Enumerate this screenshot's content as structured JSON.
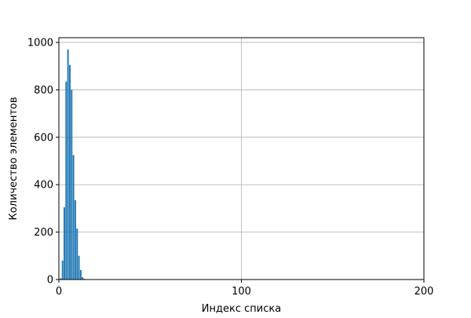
{
  "chart_data": {
    "type": "bar",
    "title": "",
    "xlabel": "Индекс списка",
    "ylabel": "Количество элементов",
    "xlim": [
      0,
      200
    ],
    "ylim": [
      0,
      1020
    ],
    "xticks": [
      0,
      100,
      200
    ],
    "yticks": [
      0,
      200,
      400,
      600,
      800,
      1000
    ],
    "grid": true,
    "bar_color": "#1f77b4",
    "bar_width": 1,
    "x": [
      1,
      2,
      3,
      4,
      5,
      6,
      7,
      8,
      9,
      10,
      11,
      12,
      13,
      14
    ],
    "values": [
      5,
      80,
      305,
      835,
      970,
      905,
      800,
      525,
      335,
      215,
      100,
      40,
      10,
      3
    ]
  }
}
